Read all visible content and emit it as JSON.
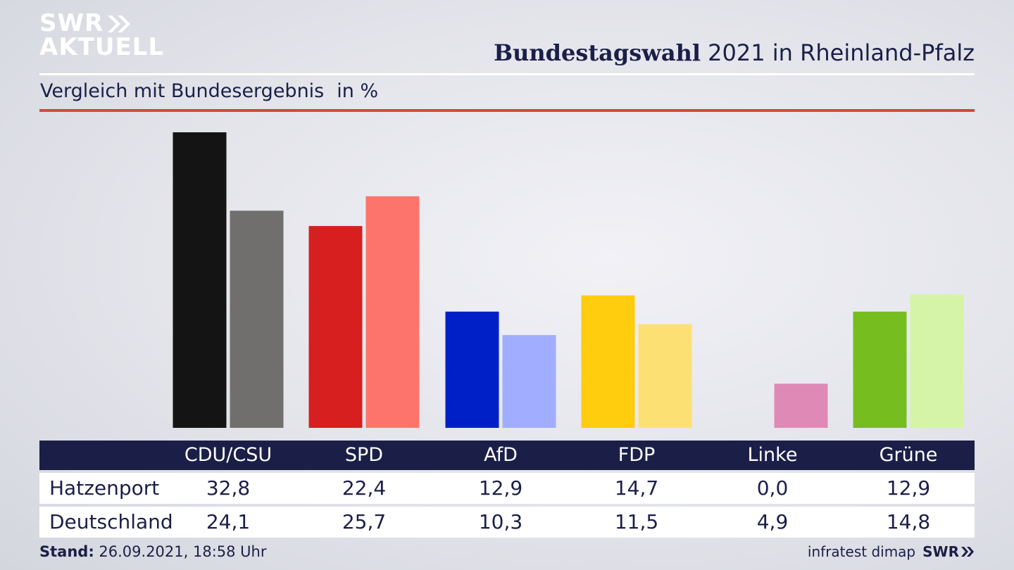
{
  "logo": {
    "line1": "SWR",
    "line2": "AKTUELL",
    "arrows_icon": "double-chevron-right"
  },
  "header": {
    "title_bold": "Bundestagswahl",
    "title_rest": " 2021 in Rheinland-Pfalz"
  },
  "subtitle": {
    "text": "Vergleich mit Bundesergebnis",
    "unit": "in %"
  },
  "colors": {
    "title": "#1b1f48",
    "rule_red": "#cf4a3c",
    "table_header": "#1b1f48",
    "CDU/CSU": [
      "#141414",
      "#716f6d"
    ],
    "SPD": [
      "#d71f1f",
      "#fd746c"
    ],
    "AfD": [
      "#0020c7",
      "#a1adff"
    ],
    "FDP": [
      "#ffcc0e",
      "#fde073"
    ],
    "Linke": [
      "#be3075",
      "#df8ab6"
    ],
    "Grüne": [
      "#76bd1f",
      "#d5f4a7"
    ]
  },
  "chart_data": {
    "type": "bar",
    "categories": [
      "CDU/CSU",
      "SPD",
      "AfD",
      "FDP",
      "Linke",
      "Grüne"
    ],
    "series": [
      {
        "name": "Hatzenport",
        "values": [
          32.8,
          22.4,
          12.9,
          14.7,
          0.0,
          12.9
        ],
        "labels": [
          "32,8",
          "22,4",
          "12,9",
          "14,7",
          "0,0",
          "12,9"
        ]
      },
      {
        "name": "Deutschland",
        "values": [
          24.1,
          25.7,
          10.3,
          11.5,
          4.9,
          14.8
        ],
        "labels": [
          "24,1",
          "25,7",
          "10,3",
          "11,5",
          "4,9",
          "14,8"
        ]
      }
    ],
    "title": "Bundestagswahl 2021 in Rheinland-Pfalz",
    "ylabel": "in %",
    "ylim": [
      0,
      32.8
    ],
    "grid": false,
    "legend": "table-below"
  },
  "footer": {
    "stand_label": "Stand:",
    "stand_value": " 26.09.2021, 18:58 Uhr",
    "source": "infratest dimap",
    "brand": "SWR"
  }
}
